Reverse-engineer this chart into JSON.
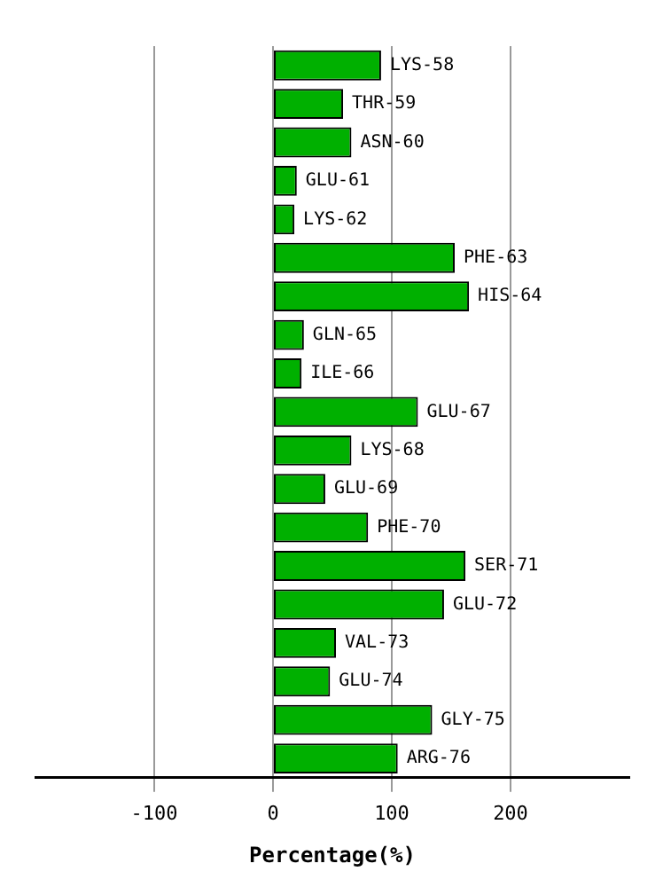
{
  "chart_data": {
    "type": "bar",
    "orientation": "horizontal",
    "xlabel": "Percentage(%)",
    "categories": [
      "LYS-58",
      "THR-59",
      "ASN-60",
      "GLU-61",
      "LYS-62",
      "PHE-63",
      "HIS-64",
      "GLN-65",
      "ILE-66",
      "GLU-67",
      "LYS-68",
      "GLU-69",
      "PHE-70",
      "SER-71",
      "GLU-72",
      "VAL-73",
      "GLU-74",
      "GLY-75",
      "ARG-76"
    ],
    "values": [
      91,
      59,
      66,
      20,
      18,
      153,
      165,
      26,
      24,
      122,
      66,
      44,
      80,
      162,
      144,
      53,
      48,
      134,
      105
    ],
    "color": "#00b000",
    "xlim": [
      -200,
      300
    ],
    "xticks": [
      -100,
      0,
      100,
      200
    ],
    "grid": "x",
    "legend": false,
    "tick_labels": "x"
  }
}
